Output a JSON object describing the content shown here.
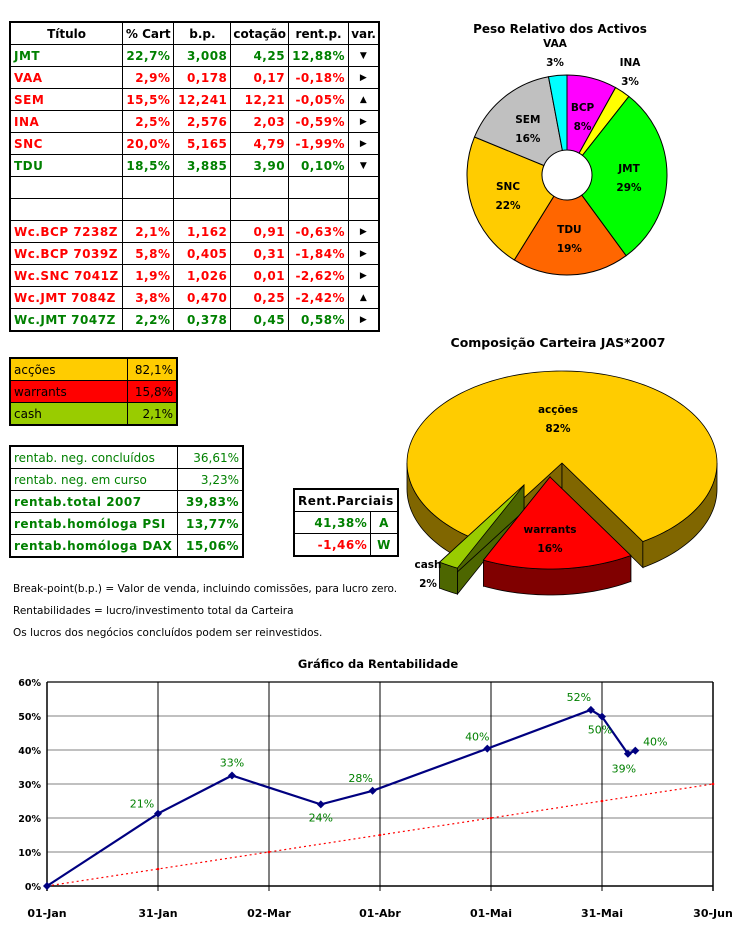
{
  "holdings_table": {
    "headers": [
      "Título",
      "% Cart",
      "b.p.",
      "cotação",
      "rent.p.",
      "var."
    ],
    "rows": [
      {
        "titulo": "JMT",
        "cart": "22,7%",
        "bp": "3,008",
        "cotacao": "4,25",
        "rent": "12,88%",
        "var": "triangle-down-icon",
        "color": "green"
      },
      {
        "titulo": "VAA",
        "cart": "2,9%",
        "bp": "0,178",
        "cotacao": "0,17",
        "rent": "-0,18%",
        "var": "triangle-right-icon",
        "color": "red"
      },
      {
        "titulo": "SEM",
        "cart": "15,5%",
        "bp": "12,241",
        "cotacao": "12,21",
        "rent": "-0,05%",
        "var": "triangle-up-icon",
        "color": "red"
      },
      {
        "titulo": "INA",
        "cart": "2,5%",
        "bp": "2,576",
        "cotacao": "2,03",
        "rent": "-0,59%",
        "var": "triangle-right-icon",
        "color": "red"
      },
      {
        "titulo": "SNC",
        "cart": "20,0%",
        "bp": "5,165",
        "cotacao": "4,79",
        "rent": "-1,99%",
        "var": "triangle-right-icon",
        "color": "red"
      },
      {
        "titulo": "TDU",
        "cart": "18,5%",
        "bp": "3,885",
        "cotacao": "3,90",
        "rent": "0,10%",
        "var": "triangle-down-icon",
        "color": "green"
      },
      {
        "titulo": "",
        "cart": "",
        "bp": "",
        "cotacao": "",
        "rent": "",
        "var": "",
        "color": "green"
      },
      {
        "titulo": "",
        "cart": "",
        "bp": "",
        "cotacao": "",
        "rent": "",
        "var": "",
        "color": "green"
      },
      {
        "titulo": "Wc.BCP 7238Z",
        "cart": "2,1%",
        "bp": "1,162",
        "cotacao": "0,91",
        "rent": "-0,63%",
        "var": "triangle-right-icon",
        "color": "red"
      },
      {
        "titulo": "Wc.BCP 7039Z",
        "cart": "5,8%",
        "bp": "0,405",
        "cotacao": "0,31",
        "rent": "-1,84%",
        "var": "triangle-right-icon",
        "color": "red"
      },
      {
        "titulo": "Wc.SNC 7041Z",
        "cart": "1,9%",
        "bp": "1,026",
        "cotacao": "0,01",
        "rent": "-2,62%",
        "var": "triangle-right-icon",
        "color": "red"
      },
      {
        "titulo": "Wc.JMT 7084Z",
        "cart": "3,8%",
        "bp": "0,470",
        "cotacao": "0,25",
        "rent": "-2,42%",
        "var": "triangle-up-icon",
        "color": "red"
      },
      {
        "titulo": "Wc.JMT 7047Z",
        "cart": "2,2%",
        "bp": "0,378",
        "cotacao": "0,45",
        "rent": "0,58%",
        "var": "triangle-right-icon",
        "color": "green"
      }
    ]
  },
  "composition_table": [
    {
      "label": "acções",
      "value": "82,1%",
      "bg": "#ffcc00"
    },
    {
      "label": "warrants",
      "value": "15,8%",
      "bg": "#ff0000"
    },
    {
      "label": "cash",
      "value": "2,1%",
      "bg": "#99cc00"
    }
  ],
  "rentab_table": [
    {
      "label": "rentab. neg. concluídos",
      "value": "36,61%",
      "bold": false
    },
    {
      "label": "rentab. neg. em curso",
      "value": "3,23%",
      "bold": false
    },
    {
      "label": "rentab.total 2007",
      "value": "39,83%",
      "bold": true
    },
    {
      "label": "rentab.homóloga PSI",
      "value": "13,77%",
      "bold": true
    },
    {
      "label": "rentab.homóloga DAX",
      "value": "15,06%",
      "bold": true
    }
  ],
  "rent_parciais": {
    "title": "Rent.Parciais",
    "rows": [
      {
        "value": "41,38%",
        "code": "A",
        "color": "green"
      },
      {
        "value": "-1,46%",
        "code": "W",
        "color": "red"
      }
    ]
  },
  "notes": [
    "Break-point(b.p.) = Valor de venda, incluindo comissões, para lucro zero.",
    "Rentabilidades = lucro/investimento total da Carteira",
    "Os lucros dos negócios concluídos podem ser reinvestidos."
  ],
  "chart_data": [
    {
      "type": "pie",
      "title": "Peso Relativo dos Activos",
      "donut": true,
      "slices": [
        {
          "label": "BCP",
          "value": 7.9,
          "display": "8%",
          "color": "#ff00ff"
        },
        {
          "label": "INA",
          "value": 2.5,
          "display": "3%",
          "color": "#ffff00"
        },
        {
          "label": "JMT",
          "value": 28.7,
          "display": "29%",
          "color": "#00ff00"
        },
        {
          "label": "TDU",
          "value": 18.5,
          "display": "19%",
          "color": "#ff6600"
        },
        {
          "label": "SNC",
          "value": 21.9,
          "display": "22%",
          "color": "#ffcc00"
        },
        {
          "label": "SEM",
          "value": 15.5,
          "display": "16%",
          "color": "#c0c0c0"
        },
        {
          "label": "VAA",
          "value": 2.9,
          "display": "3%",
          "color": "#00ffff"
        }
      ]
    },
    {
      "type": "pie",
      "title": "Composição Carteira JAS*2007",
      "3d": true,
      "slices": [
        {
          "label": "acções",
          "value": 82.1,
          "display": "82%",
          "color": "#ffcc00",
          "side": "#806600"
        },
        {
          "label": "warrants",
          "value": 15.8,
          "display": "16%",
          "color": "#ff0000",
          "side": "#800000"
        },
        {
          "label": "cash",
          "value": 2.1,
          "display": "2%",
          "color": "#99cc00",
          "side": "#4d6600"
        }
      ]
    },
    {
      "type": "line",
      "title": "Gráfico da Rentabilidade",
      "xlim": [
        "2007-01-01",
        "2007-06-30"
      ],
      "xticks": [
        "01-Jan",
        "31-Jan",
        "02-Mar",
        "01-Abr",
        "01-Mai",
        "31-Mai",
        "30-Jun"
      ],
      "ylim": [
        0,
        60
      ],
      "yticks": [
        "0%",
        "10%",
        "20%",
        "30%",
        "40%",
        "50%",
        "60%"
      ],
      "grid": true,
      "series": [
        {
          "color": "#000080",
          "points": [
            {
              "x": "2007-01-01",
              "y": 0,
              "label": ""
            },
            {
              "x": "2007-01-31",
              "y": 21.3,
              "label": "21%"
            },
            {
              "x": "2007-02-20",
              "y": 32.5,
              "label": "33%"
            },
            {
              "x": "2007-03-16",
              "y": 24.0,
              "label": "24%"
            },
            {
              "x": "2007-03-30",
              "y": 28.0,
              "label": "28%"
            },
            {
              "x": "2007-04-30",
              "y": 40.4,
              "label": "40%"
            },
            {
              "x": "2007-05-28",
              "y": 51.8,
              "label": "52%"
            },
            {
              "x": "2007-05-31",
              "y": 49.8,
              "label": "50%"
            },
            {
              "x": "2007-06-07",
              "y": 38.9,
              "label": "39%"
            },
            {
              "x": "2007-06-09",
              "y": 39.8,
              "label": "40%"
            }
          ]
        },
        {
          "color": "#ff0000",
          "style": "dotted",
          "points": [
            {
              "x": "2007-01-01",
              "y": 0
            },
            {
              "x": "2007-01-31",
              "y": 5
            },
            {
              "x": "2007-03-02",
              "y": 10
            },
            {
              "x": "2007-04-01",
              "y": 15
            },
            {
              "x": "2007-05-01",
              "y": 20
            },
            {
              "x": "2007-05-31",
              "y": 25
            },
            {
              "x": "2007-06-30",
              "y": 30
            }
          ]
        }
      ]
    }
  ]
}
